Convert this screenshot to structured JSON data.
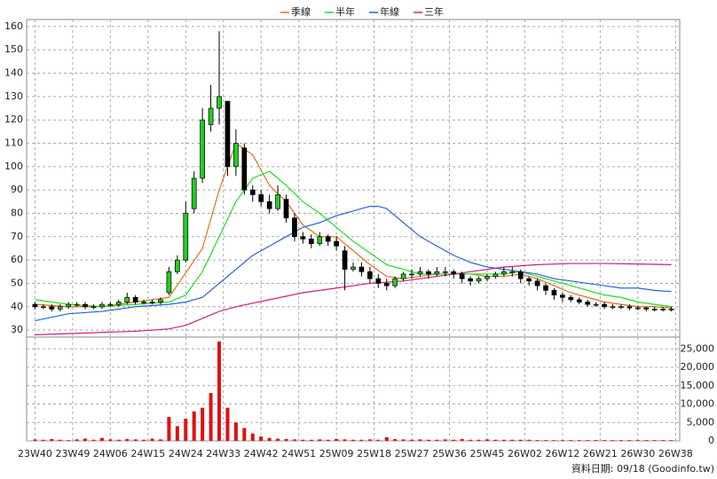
{
  "chart_data": [
    {
      "type": "candlestick",
      "x": [
        0,
        2,
        4,
        6,
        8,
        10,
        12,
        14,
        16,
        18,
        20,
        22,
        24,
        26,
        28,
        30,
        32,
        34,
        36,
        38,
        40,
        42,
        44,
        46,
        48,
        50,
        52,
        54,
        56,
        58,
        60,
        62,
        64,
        66,
        68,
        70,
        72,
        74,
        76,
        78,
        80,
        82,
        84,
        86,
        88,
        90,
        92,
        94,
        96,
        98,
        100,
        102,
        104,
        106,
        108,
        110,
        112,
        114,
        116,
        118,
        120,
        122,
        124,
        126,
        128,
        130,
        132,
        134,
        136,
        138,
        140,
        142,
        144,
        146,
        148,
        150,
        152
      ],
      "open": [
        41,
        40,
        40,
        39,
        40,
        41,
        41,
        40,
        40,
        41,
        41,
        42,
        44,
        42,
        42,
        42,
        46,
        55,
        60,
        82,
        95,
        118,
        125,
        128,
        100,
        108,
        90,
        88,
        85,
        82,
        86,
        78,
        70,
        69,
        67,
        70,
        68,
        64,
        56,
        57,
        55,
        52,
        50,
        49,
        52,
        54,
        54,
        55,
        54,
        55,
        55,
        54,
        52,
        51,
        52,
        53,
        54,
        55,
        55,
        52,
        51,
        49,
        47,
        45,
        44,
        43,
        42,
        41,
        41,
        40,
        40,
        40,
        39.5,
        39.5,
        39,
        39,
        39
      ],
      "high": [
        42,
        41,
        41,
        41,
        42,
        42,
        42,
        41,
        42,
        42,
        43,
        46,
        45,
        43,
        43,
        44,
        57,
        62,
        85,
        98,
        125,
        135,
        158,
        128,
        116,
        110,
        92,
        90,
        88,
        92,
        88,
        80,
        72,
        71,
        72,
        71,
        70,
        66,
        59,
        59,
        57,
        54,
        52,
        53,
        55,
        56,
        57,
        56,
        57,
        57,
        56,
        55,
        53,
        53,
        54,
        55,
        57,
        57,
        56,
        53,
        52,
        50,
        48,
        46,
        45,
        44,
        43,
        42,
        42,
        41,
        41,
        41,
        40.5,
        40,
        40,
        40,
        40
      ],
      "low": [
        39,
        39,
        38,
        38,
        39,
        40,
        39,
        39,
        39,
        40,
        40,
        41,
        41,
        41,
        41,
        41,
        45,
        54,
        59,
        80,
        93,
        115,
        118,
        96,
        96,
        88,
        85,
        83,
        80,
        81,
        76,
        68,
        67,
        65,
        66,
        66,
        64,
        47,
        55,
        53,
        50,
        48,
        47,
        48,
        51,
        52,
        53,
        52,
        53,
        53,
        52,
        50,
        49,
        50,
        51,
        52,
        53,
        53,
        50,
        49,
        47,
        45,
        43,
        42,
        42,
        41,
        40,
        40,
        39,
        39,
        39,
        38.5,
        38.5,
        38,
        38,
        38,
        38
      ],
      "close": [
        40,
        40,
        39,
        40,
        41,
        41,
        40,
        40,
        41,
        41,
        42,
        44,
        42,
        42,
        42,
        43,
        55,
        60,
        80,
        95,
        120,
        125,
        130,
        100,
        110,
        90,
        88,
        85,
        82,
        88,
        78,
        70,
        69,
        67,
        70,
        68,
        66,
        56,
        57,
        55,
        52,
        50,
        49,
        52,
        54,
        54,
        55,
        54,
        55,
        55,
        54,
        52,
        51,
        52,
        53,
        54,
        55,
        55,
        52,
        51,
        49,
        47,
        45,
        44,
        43,
        42,
        41,
        41,
        40,
        40,
        40,
        39.5,
        39.5,
        39,
        39,
        39,
        39
      ],
      "up_color": "#22cc22",
      "down_color": "#000000",
      "series": [
        {
          "name": "季線",
          "color": "#e07020",
          "x": [
            0,
            8,
            16,
            24,
            32,
            40,
            44,
            48,
            52,
            56,
            60,
            64,
            68,
            72,
            76,
            80,
            84,
            88,
            92,
            96,
            100,
            104,
            108,
            112,
            116,
            120,
            124,
            128,
            132,
            136,
            140,
            144,
            148,
            152
          ],
          "values": [
            41,
            40,
            40,
            42,
            44,
            65,
            90,
            110,
            105,
            92,
            85,
            75,
            70,
            70,
            64,
            58,
            53,
            52,
            53,
            54,
            54,
            54,
            53,
            53,
            54,
            52,
            49,
            46,
            44,
            42,
            41,
            40,
            40,
            39.5
          ]
        },
        {
          "name": "半年",
          "color": "#22dd22",
          "x": [
            0,
            8,
            16,
            24,
            32,
            36,
            40,
            44,
            48,
            52,
            56,
            60,
            64,
            68,
            72,
            76,
            80,
            84,
            88,
            92,
            96,
            100,
            104,
            108,
            112,
            116,
            120,
            124,
            128,
            132,
            136,
            140,
            144,
            148,
            152
          ],
          "values": [
            43,
            41,
            40,
            41,
            42,
            45,
            55,
            70,
            85,
            95,
            98,
            92,
            85,
            80,
            74,
            68,
            63,
            58,
            56,
            54,
            54,
            54,
            54,
            54,
            54,
            55,
            53,
            51,
            49,
            47,
            45,
            44,
            42,
            41,
            40
          ]
        },
        {
          "name": "年線",
          "color": "#2266dd",
          "x": [
            0,
            8,
            16,
            24,
            32,
            36,
            40,
            44,
            48,
            52,
            56,
            60,
            64,
            68,
            72,
            76,
            80,
            82,
            84,
            88,
            92,
            96,
            100,
            104,
            108,
            112,
            116,
            120,
            124,
            128,
            132,
            136,
            140,
            144,
            148,
            152
          ],
          "values": [
            34,
            37,
            38,
            40,
            41,
            42,
            44,
            50,
            56,
            62,
            66,
            70,
            74,
            76,
            79,
            81,
            83,
            83,
            82,
            76,
            70,
            66,
            62,
            59,
            57,
            56,
            55,
            54,
            52,
            51,
            50,
            49,
            48,
            48,
            47,
            46.5
          ]
        },
        {
          "name": "三年",
          "color": "#cc2277",
          "x": [
            0,
            16,
            24,
            32,
            36,
            40,
            44,
            48,
            56,
            64,
            72,
            80,
            88,
            96,
            104,
            112,
            120,
            128,
            136,
            144,
            152
          ],
          "values": [
            28,
            29,
            29.5,
            30.5,
            32,
            35,
            38,
            40,
            43,
            46,
            48,
            50,
            51,
            53,
            55,
            57,
            58,
            58.5,
            58.5,
            58.3,
            58
          ]
        }
      ],
      "xlim": [
        -2,
        154
      ],
      "ylim": [
        27,
        163
      ],
      "yticks": [
        30,
        40,
        50,
        60,
        70,
        80,
        90,
        100,
        110,
        120,
        130,
        140,
        150,
        160
      ],
      "grid": true
    },
    {
      "type": "bar",
      "x": [
        0,
        2,
        4,
        6,
        8,
        10,
        12,
        14,
        16,
        18,
        20,
        22,
        24,
        26,
        28,
        30,
        32,
        34,
        36,
        38,
        40,
        42,
        44,
        46,
        48,
        50,
        52,
        54,
        56,
        58,
        60,
        62,
        64,
        66,
        68,
        70,
        72,
        74,
        76,
        78,
        80,
        82,
        84,
        86,
        88,
        90,
        92,
        94,
        96,
        98,
        100,
        102,
        104,
        106,
        108,
        110,
        112,
        114,
        116,
        118,
        120,
        122,
        124,
        126,
        128,
        130,
        132,
        134,
        136,
        138,
        140,
        142,
        144,
        146,
        148,
        150,
        152
      ],
      "values": [
        400,
        300,
        500,
        300,
        200,
        400,
        600,
        300,
        800,
        400,
        300,
        500,
        400,
        300,
        600,
        400,
        6500,
        4000,
        6000,
        8000,
        9000,
        13000,
        27000,
        9000,
        5000,
        3500,
        2000,
        1200,
        800,
        600,
        500,
        400,
        300,
        300,
        400,
        300,
        500,
        400,
        300,
        300,
        400,
        300,
        1000,
        500,
        400,
        300,
        400,
        300,
        300,
        400,
        300,
        500,
        300,
        300,
        400,
        300,
        300,
        300,
        300,
        300,
        200,
        200,
        200,
        200,
        200,
        200,
        200,
        200,
        200,
        200,
        200,
        200,
        200,
        200,
        200,
        200,
        200
      ],
      "color": "#dd1111",
      "ylim": [
        0,
        28200
      ],
      "yticks": [
        0,
        {
          "value": 5000,
          "label": "5,000"
        },
        {
          "value": 10000,
          "label": "10,000"
        },
        {
          "value": 15000,
          "label": "15,000"
        },
        {
          "value": 20000,
          "label": "20,000"
        },
        {
          "value": 25000,
          "label": "25,000"
        }
      ],
      "xticks": [
        {
          "value": 0,
          "label": "23W40"
        },
        {
          "value": 9,
          "label": "23W49"
        },
        {
          "value": 18,
          "label": "24W06"
        },
        {
          "value": 27,
          "label": "24W15"
        },
        {
          "value": 36,
          "label": "24W24"
        },
        {
          "value": 45,
          "label": "24W33"
        },
        {
          "value": 54,
          "label": "24W42"
        },
        {
          "value": 63,
          "label": "24W51"
        },
        {
          "value": 72,
          "label": "25W09"
        },
        {
          "value": 81,
          "label": "25W18"
        },
        {
          "value": 90,
          "label": "25W27"
        },
        {
          "value": 99,
          "label": "25W36"
        },
        {
          "value": 108,
          "label": "25W45"
        },
        {
          "value": 117,
          "label": "26W02"
        },
        {
          "value": 126,
          "label": "26W12"
        },
        {
          "value": 135,
          "label": "26W21"
        },
        {
          "value": 144,
          "label": "26W30"
        },
        {
          "value": 153,
          "label": "26W38"
        }
      ],
      "grid": true
    }
  ],
  "footer": "資料日期: 09/18  (Goodinfo.tw)"
}
